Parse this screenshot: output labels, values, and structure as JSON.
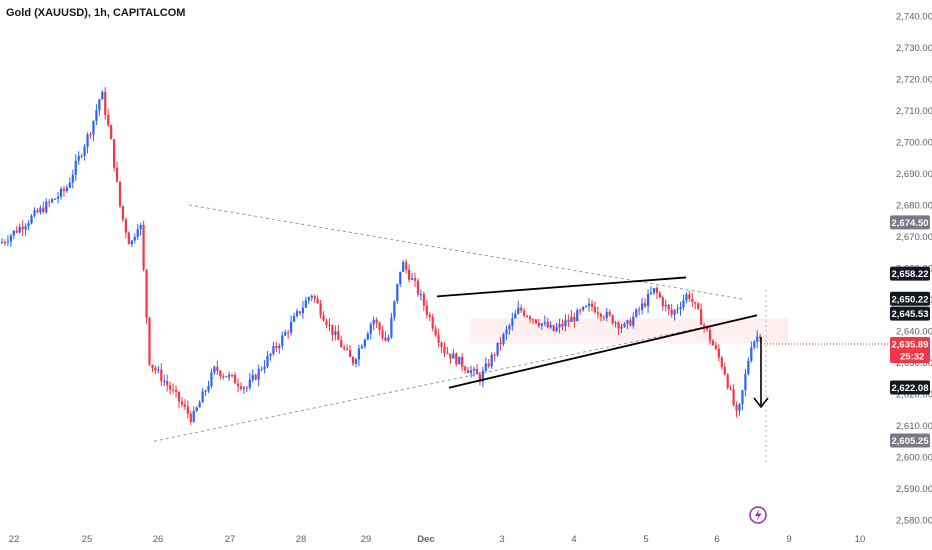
{
  "header": {
    "title": "Gold (XAUUSD), 1h, CAPITALCOM"
  },
  "colors": {
    "up": "#2962ff",
    "down": "#f23645",
    "badge_dark": "#131722",
    "badge_gray": "#787b86",
    "price_red": "#f23645"
  },
  "chart_data": {
    "type": "candlestick",
    "symbol": "Gold (XAUUSD)",
    "interval": "1h",
    "broker": "CAPITALCOM",
    "ylim": [
      2580,
      2740
    ],
    "y_ticks": [
      "2,740.00",
      "2,730.00",
      "2,720.00",
      "2,710.00",
      "2,700.00",
      "2,690.00",
      "2,680.00",
      "2,670.00",
      "2,660.00",
      "2,650.00",
      "2,640.00",
      "2,630.00",
      "2,620.00",
      "2,610.00",
      "2,600.00",
      "2,590.00",
      "2,580.00"
    ],
    "x_ticks": [
      "22",
      "25",
      "26",
      "27",
      "28",
      "29",
      "Dec",
      "3",
      "4",
      "5",
      "6",
      "9",
      "10"
    ],
    "current_price": "2,635.89",
    "countdown": "25:32",
    "price_badges": [
      {
        "label": "2,674.50",
        "style": "gray"
      },
      {
        "label": "2,658.22",
        "style": "dark"
      },
      {
        "label": "2,650.22",
        "style": "dark"
      },
      {
        "label": "2,645.53",
        "style": "dark"
      },
      {
        "label": "2,622.08",
        "style": "dark"
      },
      {
        "label": "2,605.25",
        "style": "gray"
      }
    ],
    "key_points": [
      {
        "x": "22",
        "close": 2668
      },
      {
        "x": "22",
        "close": 2685
      },
      {
        "x": "25",
        "close": 2705
      },
      {
        "x": "25",
        "close": 2716
      },
      {
        "x": "25",
        "close": 2700
      },
      {
        "x": "25",
        "close": 2678
      },
      {
        "x": "25",
        "close": 2667
      },
      {
        "x": "25",
        "close": 2676
      },
      {
        "x": "25",
        "close": 2630
      },
      {
        "x": "26",
        "close": 2622
      },
      {
        "x": "26",
        "close": 2612
      },
      {
        "x": "26",
        "close": 2628
      },
      {
        "x": "27",
        "close": 2622
      },
      {
        "x": "27",
        "close": 2637
      },
      {
        "x": "28",
        "close": 2652
      },
      {
        "x": "28",
        "close": 2640
      },
      {
        "x": "28",
        "close": 2630
      },
      {
        "x": "29",
        "close": 2644
      },
      {
        "x": "29",
        "close": 2636
      },
      {
        "x": "29",
        "close": 2662
      },
      {
        "x": "29",
        "close": 2654
      },
      {
        "x": "Dec",
        "close": 2634
      },
      {
        "x": "Dec",
        "close": 2625
      },
      {
        "x": "3",
        "close": 2647
      },
      {
        "x": "3",
        "close": 2640
      },
      {
        "x": "4",
        "close": 2648
      },
      {
        "x": "4",
        "close": 2641
      },
      {
        "x": "5",
        "close": 2653
      },
      {
        "x": "5",
        "close": 2645
      },
      {
        "x": "5",
        "close": 2652
      },
      {
        "x": "5",
        "close": 2641
      },
      {
        "x": "6",
        "close": 2628
      },
      {
        "x": "6",
        "close": 2612
      },
      {
        "x": "6",
        "close": 2636
      },
      {
        "x": "6",
        "close": 2641
      },
      {
        "x": "6",
        "close": 2635.89
      }
    ],
    "annotations": {
      "symmetrical_triangle": {
        "upper": [
          [
            "26",
            2680
          ],
          [
            "6",
            2650
          ]
        ],
        "lower": [
          [
            "26",
            2605
          ],
          [
            "6",
            2644
          ]
        ]
      },
      "rising_wedge": {
        "upper": [
          [
            "Dec",
            2651
          ],
          [
            "5",
            2657
          ]
        ],
        "lower": [
          [
            "Dec",
            2622
          ],
          [
            "6",
            2645
          ]
        ]
      },
      "resistance_zone": [
        2636,
        2644
      ],
      "arrow": "down"
    },
    "grid": false,
    "legend": "none"
  }
}
